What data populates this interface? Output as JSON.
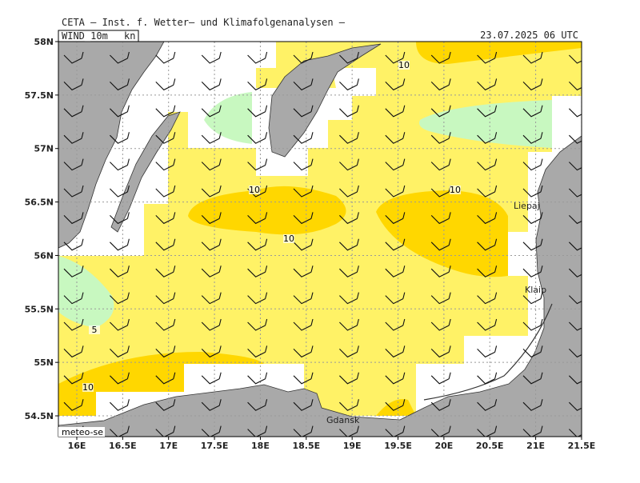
{
  "header": {
    "title": "CETA — Inst. f. Wetter— und Klimafolgenanalysen —",
    "field": "WIND_10m",
    "unit": "kn",
    "valid_time": "23.07.2025 06 UTC",
    "credit": "meteo-se"
  },
  "map": {
    "lat_labels": [
      "58N",
      "57.5N",
      "57N",
      "56.5N",
      "56N",
      "55.5N",
      "55N",
      "54.5N"
    ],
    "lon_labels": [
      "16E",
      "16.5E",
      "17E",
      "17.5E",
      "18E",
      "18.5E",
      "19E",
      "19.5E",
      "20E",
      "20.5E",
      "21E",
      "21.5E"
    ],
    "contour_labels": [
      "10",
      "10",
      "10",
      "10",
      "10",
      "5"
    ],
    "places": [
      "Liepaj",
      "Klaip",
      "Gdansk"
    ]
  }
}
